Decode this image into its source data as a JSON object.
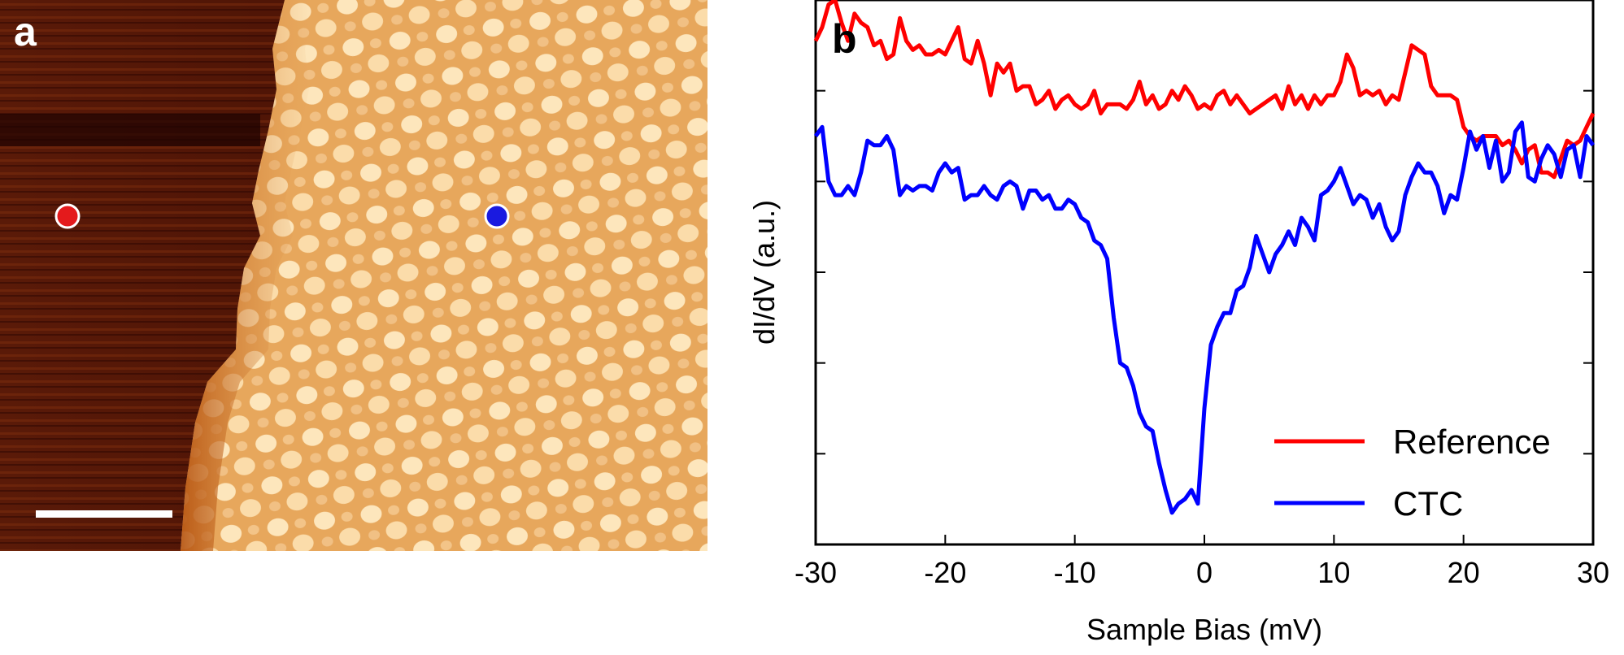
{
  "panels": {
    "a": {
      "label": "a"
    },
    "b": {
      "label": "b"
    }
  },
  "colors": {
    "reference": "#ff0000",
    "ctc": "#0000ff",
    "substrate_dark": "#4a1205",
    "island_light": "#f8d8a0"
  },
  "chart_data": {
    "type": "line",
    "title": "",
    "xlabel": "Sample Bias (mV)",
    "ylabel": "dI/dV (a.u.)",
    "xlim": [
      -30,
      30
    ],
    "ylim": [
      0,
      6
    ],
    "x_ticks": [
      -30,
      -20,
      -10,
      0,
      10,
      20,
      30
    ],
    "x_tick_labels": [
      "-30",
      "-20",
      "-10",
      "0",
      "10",
      "20",
      "30"
    ],
    "y_ticks": [
      1,
      2,
      3,
      4,
      5,
      6
    ],
    "y_tick_labels_shown": false,
    "legend_position": "bottom-right",
    "series": [
      {
        "name": "Reference",
        "color": "#ff0000",
        "x": [
          -30,
          -29.5,
          -29,
          -28.5,
          -28,
          -27.5,
          -27,
          -26.5,
          -26,
          -25.5,
          -25,
          -24.5,
          -24,
          -23.5,
          -23,
          -22.5,
          -22,
          -21.5,
          -21,
          -20.5,
          -20,
          -19.5,
          -19,
          -18.5,
          -18,
          -17.5,
          -17,
          -16.5,
          -16,
          -15.5,
          -15,
          -14.5,
          -14,
          -13.5,
          -13,
          -12.5,
          -12,
          -11.5,
          -11,
          -10.5,
          -10,
          -9.5,
          -9,
          -8.5,
          -8,
          -7.5,
          -7,
          -6.5,
          -6,
          -5.5,
          -5,
          -4.5,
          -4,
          -3.5,
          -3,
          -2.5,
          -2,
          -1.5,
          -1,
          -0.5,
          0,
          0.5,
          1,
          1.5,
          2,
          2.5,
          3,
          3.5,
          4,
          4.5,
          5,
          5.5,
          6,
          6.5,
          7,
          7.5,
          8,
          8.5,
          9,
          9.5,
          10,
          10.5,
          11,
          11.5,
          12,
          12.5,
          13,
          13.5,
          14,
          14.5,
          15,
          15.5,
          16,
          16.5,
          17,
          17.5,
          18,
          18.5,
          19,
          19.5,
          20,
          20.5,
          21,
          21.5,
          22,
          22.5,
          23,
          23.5,
          24,
          24.5,
          25,
          25.5,
          26,
          26.5,
          27,
          27.5,
          28,
          28.5,
          29,
          29.5,
          30
        ],
        "values": [
          5.55,
          5.7,
          5.95,
          6.0,
          5.75,
          5.55,
          5.85,
          5.75,
          5.7,
          5.5,
          5.55,
          5.35,
          5.4,
          5.8,
          5.55,
          5.45,
          5.5,
          5.4,
          5.4,
          5.45,
          5.4,
          5.55,
          5.7,
          5.35,
          5.3,
          5.55,
          5.3,
          4.95,
          5.3,
          5.2,
          5.3,
          5.0,
          5.05,
          5.05,
          4.85,
          4.9,
          5.0,
          4.8,
          4.9,
          4.95,
          4.85,
          4.8,
          4.85,
          5.0,
          4.75,
          4.85,
          4.85,
          4.85,
          4.8,
          4.9,
          5.1,
          4.85,
          4.95,
          4.8,
          4.85,
          5.0,
          4.9,
          5.05,
          4.95,
          4.8,
          4.85,
          4.8,
          4.95,
          5.0,
          4.85,
          4.95,
          4.85,
          4.75,
          4.8,
          4.85,
          4.9,
          4.95,
          4.8,
          5.05,
          4.85,
          4.95,
          4.8,
          4.95,
          4.85,
          4.95,
          4.95,
          5.1,
          5.4,
          5.25,
          4.95,
          5.0,
          4.95,
          5.0,
          4.85,
          4.95,
          4.9,
          5.2,
          5.5,
          5.45,
          5.4,
          5.05,
          4.95,
          4.95,
          4.95,
          4.9,
          4.6,
          4.5,
          4.45,
          4.5,
          4.5,
          4.5,
          4.4,
          4.45,
          4.35,
          4.2,
          4.35,
          4.4,
          4.1,
          4.1,
          4.05,
          4.25,
          4.45,
          4.4,
          4.45,
          4.6,
          4.75
        ]
      },
      {
        "name": "CTC",
        "color": "#0000ff",
        "x": [
          -30,
          -29.5,
          -29,
          -28.5,
          -28,
          -27.5,
          -27,
          -26.5,
          -26,
          -25.5,
          -25,
          -24.5,
          -24,
          -23.5,
          -23,
          -22.5,
          -22,
          -21.5,
          -21,
          -20.5,
          -20,
          -19.5,
          -19,
          -18.5,
          -18,
          -17.5,
          -17,
          -16.5,
          -16,
          -15.5,
          -15,
          -14.5,
          -14,
          -13.5,
          -13,
          -12.5,
          -12,
          -11.5,
          -11,
          -10.5,
          -10,
          -9.5,
          -9,
          -8.5,
          -8,
          -7.5,
          -7,
          -6.5,
          -6,
          -5.5,
          -5,
          -4.5,
          -4,
          -3.5,
          -3,
          -2.5,
          -2,
          -1.5,
          -1,
          -0.5,
          0,
          0.5,
          1,
          1.5,
          2,
          2.5,
          3,
          3.5,
          4,
          4.5,
          5,
          5.5,
          6,
          6.5,
          7,
          7.5,
          8,
          8.5,
          9,
          9.5,
          10,
          10.5,
          11,
          11.5,
          12,
          12.5,
          13,
          13.5,
          14,
          14.5,
          15,
          15.5,
          16,
          16.5,
          17,
          17.5,
          18,
          18.5,
          19,
          19.5,
          20,
          20.5,
          21,
          21.5,
          22,
          22.5,
          23,
          23.5,
          24,
          24.5,
          25,
          25.5,
          26,
          26.5,
          27,
          27.5,
          28,
          28.5,
          29,
          29.5,
          30
        ],
        "values": [
          4.5,
          4.6,
          4.0,
          3.85,
          3.85,
          3.95,
          3.85,
          4.1,
          4.45,
          4.4,
          4.4,
          4.5,
          4.35,
          3.85,
          3.95,
          3.9,
          3.95,
          3.95,
          3.9,
          4.1,
          4.2,
          4.1,
          4.15,
          3.8,
          3.85,
          3.85,
          3.95,
          3.85,
          3.8,
          3.95,
          4.0,
          3.95,
          3.7,
          3.9,
          3.9,
          3.8,
          3.85,
          3.7,
          3.7,
          3.8,
          3.75,
          3.6,
          3.55,
          3.35,
          3.3,
          3.15,
          2.5,
          2.0,
          1.95,
          1.75,
          1.45,
          1.3,
          1.25,
          0.9,
          0.6,
          0.35,
          0.45,
          0.5,
          0.6,
          0.45,
          1.5,
          2.2,
          2.4,
          2.55,
          2.55,
          2.8,
          2.85,
          3.05,
          3.4,
          3.2,
          3.0,
          3.2,
          3.3,
          3.45,
          3.3,
          3.6,
          3.5,
          3.35,
          3.85,
          3.9,
          4.0,
          4.15,
          3.95,
          3.75,
          3.85,
          3.8,
          3.6,
          3.75,
          3.5,
          3.35,
          3.45,
          3.85,
          4.05,
          4.2,
          4.1,
          4.1,
          3.95,
          3.65,
          3.85,
          3.8,
          4.15,
          4.55,
          4.35,
          4.5,
          4.15,
          4.45,
          4.0,
          4.1,
          4.55,
          4.65,
          4.05,
          4.0,
          4.25,
          4.4,
          4.3,
          4.05,
          4.35,
          4.4,
          4.05,
          4.5,
          4.4
        ]
      }
    ]
  }
}
